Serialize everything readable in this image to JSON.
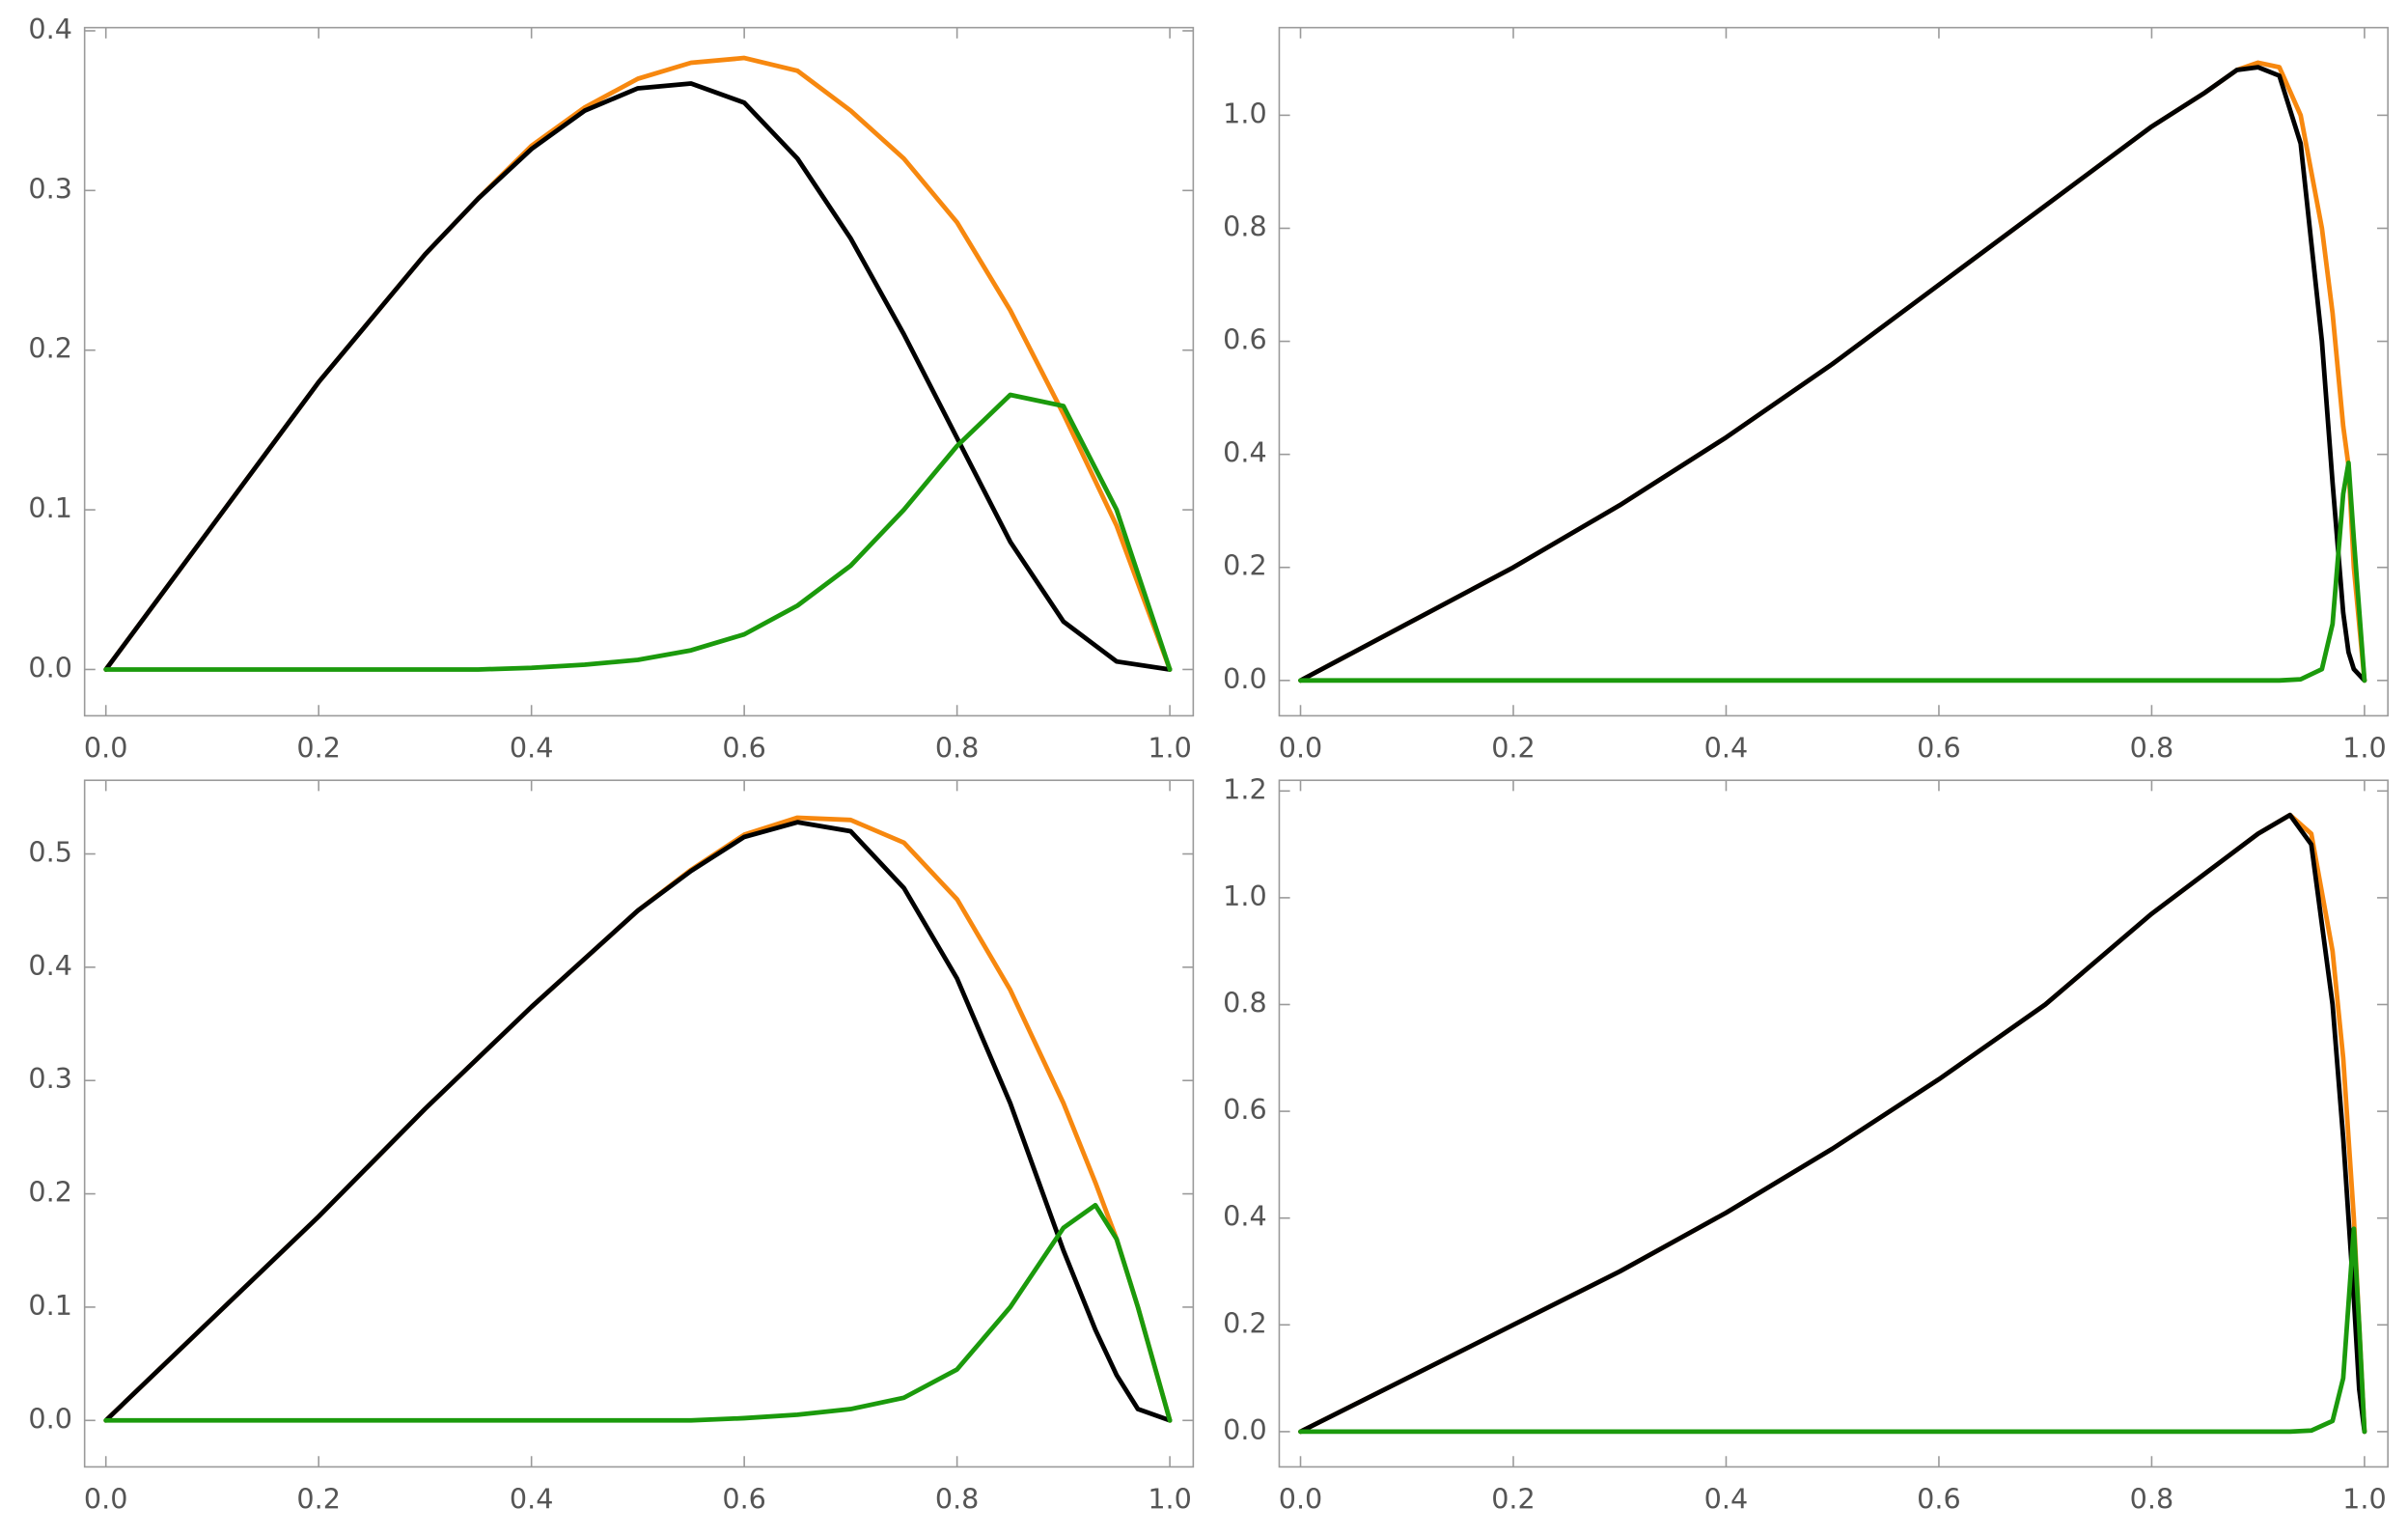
{
  "chart_data": [
    {
      "type": "line",
      "x": [
        0,
        0.05,
        0.1,
        0.15,
        0.2,
        0.25,
        0.3,
        0.35,
        0.4,
        0.45,
        0.5,
        0.55,
        0.6,
        0.65,
        0.7,
        0.75,
        0.8,
        0.85,
        0.9,
        0.95,
        1
      ],
      "series": [
        {
          "color": "#f7880f",
          "values": [
            0,
            0.045,
            0.09,
            0.135,
            0.18,
            0.22,
            0.26,
            0.295,
            0.328,
            0.352,
            0.37,
            0.38,
            0.383,
            0.375,
            0.35,
            0.32,
            0.28,
            0.225,
            0.16,
            0.09,
            0
          ]
        },
        {
          "color": "#000000",
          "values": [
            0,
            0.045,
            0.09,
            0.135,
            0.18,
            0.22,
            0.26,
            0.295,
            0.326,
            0.35,
            0.364,
            0.367,
            0.355,
            0.32,
            0.27,
            0.21,
            0.145,
            0.08,
            0.03,
            0.005,
            0
          ]
        },
        {
          "color": "#1b9a0c",
          "values": [
            0,
            0,
            0,
            0,
            0,
            0,
            0,
            0,
            0.001,
            0.003,
            0.006,
            0.012,
            0.022,
            0.04,
            0.065,
            0.1,
            0.14,
            0.172,
            0.165,
            0.1,
            0
          ]
        }
      ],
      "xlim": [
        -0.02,
        1.022
      ],
      "ylim": [
        -0.029,
        0.402
      ],
      "xticks": [
        {
          "value": 0,
          "label": "0.0"
        },
        0.2,
        0.4,
        0.6,
        0.8,
        {
          "value": 1,
          "label": "1.0"
        }
      ],
      "yticks": [
        {
          "value": 0,
          "label": "0.0"
        },
        0.1,
        0.2,
        0.3,
        0.4
      ]
    },
    {
      "type": "line",
      "x": [
        0,
        0.1,
        0.2,
        0.3,
        0.4,
        0.5,
        0.6,
        0.7,
        0.8,
        0.85,
        0.88,
        0.9,
        0.92,
        0.94,
        0.96,
        0.97,
        0.98,
        0.985,
        0.99,
        1
      ],
      "series": [
        {
          "color": "#f7880f",
          "values": [
            0,
            0.1,
            0.2,
            0.31,
            0.43,
            0.56,
            0.7,
            0.84,
            0.98,
            1.04,
            1.08,
            1.093,
            1.085,
            1.0,
            0.8,
            0.65,
            0.45,
            0.38,
            0.2,
            0
          ]
        },
        {
          "color": "#000000",
          "values": [
            0,
            0.1,
            0.2,
            0.31,
            0.43,
            0.56,
            0.7,
            0.84,
            0.98,
            1.04,
            1.08,
            1.085,
            1.07,
            0.95,
            0.6,
            0.35,
            0.12,
            0.05,
            0.02,
            0
          ]
        },
        {
          "color": "#1b9a0c",
          "values": [
            0,
            0,
            0,
            0,
            0,
            0,
            0,
            0,
            0,
            0,
            0,
            0,
            0,
            0.002,
            0.02,
            0.1,
            0.33,
            0.385,
            0.25,
            0
          ]
        }
      ],
      "xlim": [
        -0.02,
        1.022
      ],
      "ylim": [
        -0.0625,
        1.155
      ],
      "xticks": [
        {
          "value": 0,
          "label": "0.0"
        },
        0.2,
        0.4,
        0.6,
        0.8,
        {
          "value": 1,
          "label": "1.0"
        }
      ],
      "yticks": [
        {
          "value": 0,
          "label": "0.0"
        },
        0.2,
        0.4,
        0.6,
        0.8,
        {
          "value": 1,
          "label": "1.0"
        }
      ]
    },
    {
      "type": "line",
      "x": [
        0,
        0.1,
        0.2,
        0.3,
        0.4,
        0.5,
        0.55,
        0.6,
        0.65,
        0.7,
        0.75,
        0.8,
        0.85,
        0.9,
        0.93,
        0.95,
        0.97,
        1
      ],
      "series": [
        {
          "color": "#f7880f",
          "values": [
            0,
            0.09,
            0.18,
            0.275,
            0.365,
            0.45,
            0.486,
            0.517,
            0.532,
            0.53,
            0.51,
            0.46,
            0.38,
            0.28,
            0.21,
            0.16,
            0.1,
            0
          ]
        },
        {
          "color": "#000000",
          "values": [
            0,
            0.09,
            0.18,
            0.275,
            0.365,
            0.45,
            0.485,
            0.515,
            0.528,
            0.52,
            0.47,
            0.39,
            0.28,
            0.15,
            0.08,
            0.04,
            0.01,
            0
          ]
        },
        {
          "color": "#1b9a0c",
          "values": [
            0,
            0,
            0,
            0,
            0,
            0,
            0,
            0.002,
            0.005,
            0.01,
            0.02,
            0.045,
            0.1,
            0.17,
            0.19,
            0.16,
            0.1,
            0
          ]
        }
      ],
      "xlim": [
        -0.02,
        1.022
      ],
      "ylim": [
        -0.041,
        0.565
      ],
      "xticks": [
        {
          "value": 0,
          "label": "0.0"
        },
        0.2,
        0.4,
        0.6,
        0.8,
        {
          "value": 1,
          "label": "1.0"
        }
      ],
      "yticks": [
        {
          "value": 0,
          "label": "0.0"
        },
        0.1,
        0.2,
        0.3,
        0.4,
        0.5
      ]
    },
    {
      "type": "line",
      "x": [
        0,
        0.1,
        0.2,
        0.3,
        0.4,
        0.5,
        0.6,
        0.7,
        0.8,
        0.9,
        0.93,
        0.95,
        0.97,
        0.98,
        0.99,
        0.995,
        1
      ],
      "series": [
        {
          "color": "#f7880f",
          "values": [
            0,
            0.1,
            0.2,
            0.3,
            0.41,
            0.53,
            0.66,
            0.8,
            0.97,
            1.12,
            1.155,
            1.12,
            0.9,
            0.7,
            0.4,
            0.2,
            0
          ]
        },
        {
          "color": "#000000",
          "values": [
            0,
            0.1,
            0.2,
            0.3,
            0.41,
            0.53,
            0.66,
            0.8,
            0.97,
            1.12,
            1.155,
            1.1,
            0.8,
            0.55,
            0.25,
            0.08,
            0
          ]
        },
        {
          "color": "#1b9a0c",
          "values": [
            0,
            0,
            0,
            0,
            0,
            0,
            0,
            0,
            0,
            0,
            0,
            0.002,
            0.02,
            0.1,
            0.38,
            0.2,
            0
          ]
        }
      ],
      "xlim": [
        -0.02,
        1.022
      ],
      "ylim": [
        -0.066,
        1.22
      ],
      "xticks": [
        {
          "value": 0,
          "label": "0.0"
        },
        0.2,
        0.4,
        0.6,
        0.8,
        {
          "value": 1,
          "label": "1.0"
        }
      ],
      "yticks": [
        {
          "value": 0,
          "label": "0.0"
        },
        0.2,
        0.4,
        0.6,
        0.8,
        {
          "value": 1,
          "label": "1.0"
        },
        1.2
      ]
    }
  ]
}
